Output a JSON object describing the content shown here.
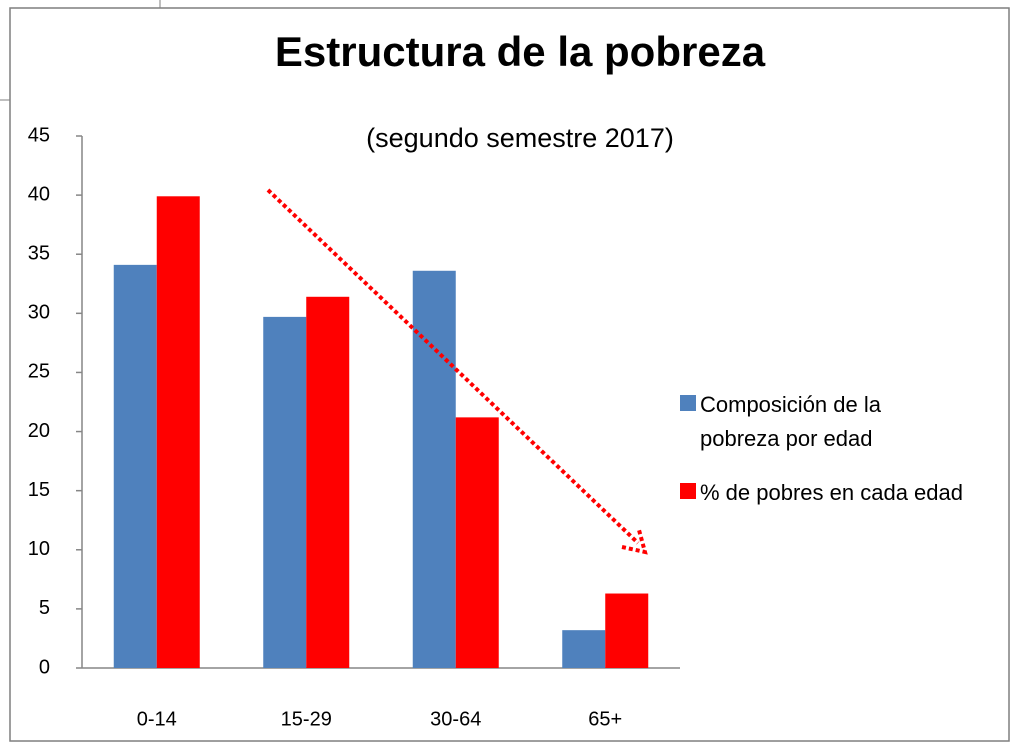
{
  "chart_data": {
    "type": "bar",
    "title": "Estructura de la pobreza",
    "subtitle": "(segundo semestre 2017)",
    "categories": [
      "0-14",
      "15-29",
      "30-64",
      "65+"
    ],
    "series": [
      {
        "name": "Composición de la pobreza por edad",
        "color": "#4f81bd",
        "values": [
          34.1,
          29.7,
          33.6,
          3.2
        ]
      },
      {
        "name": "% de pobres en cada edad",
        "color": "#ff0000",
        "values": [
          39.9,
          31.4,
          21.2,
          6.3
        ]
      }
    ],
    "ylim": [
      0,
      45
    ],
    "yticks": [
      0,
      5,
      10,
      15,
      20,
      25,
      30,
      35,
      40,
      45
    ],
    "grid": false,
    "legend": "right"
  }
}
